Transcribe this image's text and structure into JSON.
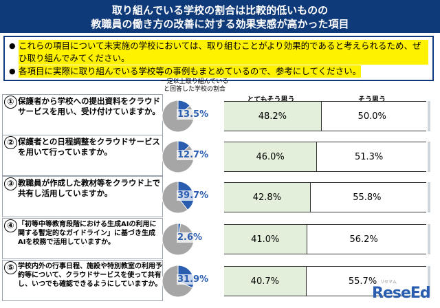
{
  "title_line1": "取り組んでいる学校の割合は比較的低いものの",
  "title_line2": "教職員の働き方の改善に対する効果実感が高かった項目",
  "notes": [
    "これらの項目について未実施の学校においては、取り組むことがより効果的であると考えられるため、ぜひ取り組んでみてください。",
    "各項目に実際に取り組んでいる学校等の事例もまとめているので、参考にしてください。"
  ],
  "pie_header": "一定以上取り組んでいる\nと回答した学校の割合",
  "col_labels": [
    "とてもそう思う",
    "そう思う"
  ],
  "chart_data": {
    "type": "bar",
    "stacked": true,
    "categories": [
      "保護者から学校への提出資料をクラウドサービスを用い、受け付けていますか。",
      "保護者との日程調整をクラウドサービスを用いて行っていますか。",
      "教職員が作成した教材等をクラウド上で共有し活用していますか。",
      "「初等中等教育段階における生成AIの利用に関する暫定的なガイドライン」に基づき生成AIを校務で活用していますか。",
      "学校内外の行事日程、施設や特別教室の利用予約等について、クラウドサービスを使って共有し、いつでも確認できるようにしていますか。"
    ],
    "question_numbers": [
      "①",
      "②",
      "③",
      "④",
      "⑤"
    ],
    "implemented_share": {
      "values": [
        13.5,
        12.7,
        39.7,
        2.6,
        31.9
      ],
      "labels": [
        "13.5%",
        "12.7%",
        "39.7%",
        "2.6%",
        "31.9%"
      ]
    },
    "series": [
      {
        "name": "とてもそう思う",
        "values": [
          48.2,
          46.0,
          42.8,
          41.0,
          40.7
        ],
        "labels": [
          "48.2%",
          "46.0%",
          "42.8%",
          "41.0%",
          "40.7%"
        ]
      },
      {
        "name": "そう思う",
        "values": [
          50.0,
          51.3,
          55.8,
          56.2,
          55.7
        ],
        "labels": [
          "50.0%",
          "51.3%",
          "55.8%",
          "56.2%",
          "55.7%"
        ]
      }
    ],
    "colors": {
      "pie_share": "#2a5db0",
      "pie_rest": "#a6a6a6",
      "very_agree": "#e3efda",
      "agree": "#ffffff"
    }
  },
  "logo": "ReseEd",
  "logo_sub": "リセマム"
}
